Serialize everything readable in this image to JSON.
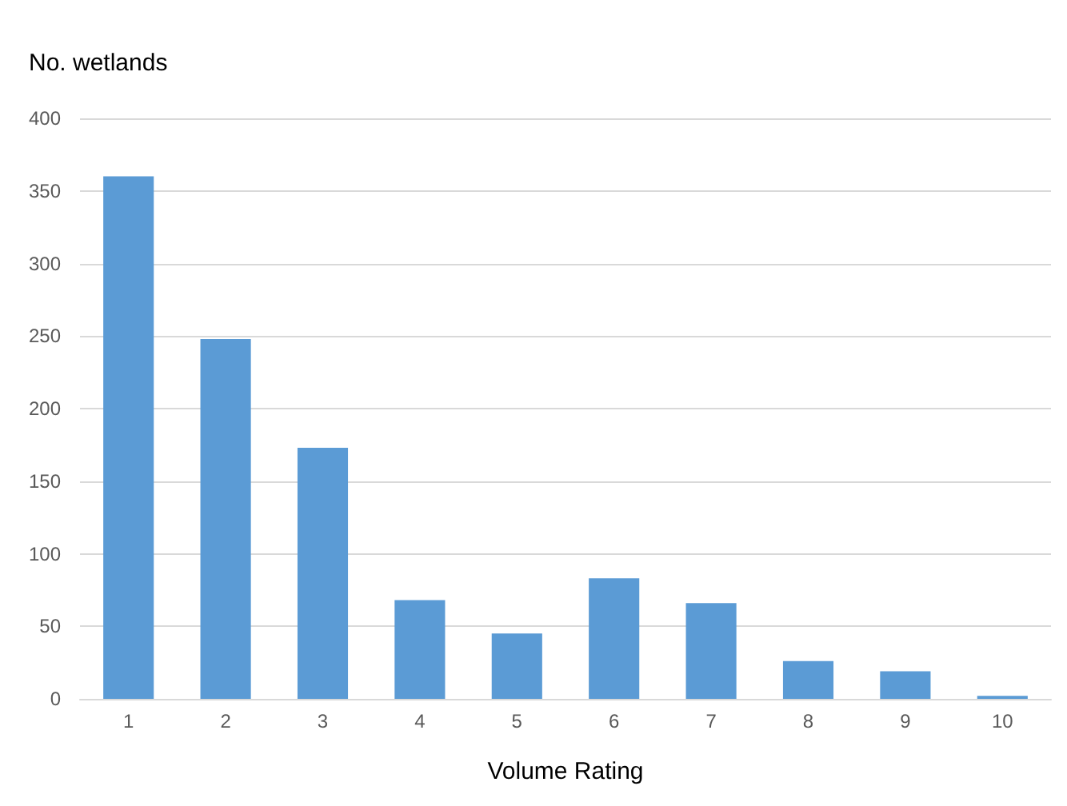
{
  "chart_data": {
    "type": "bar",
    "ylabel": "No. wetlands",
    "xlabel": "Volume Rating",
    "categories": [
      "1",
      "2",
      "3",
      "4",
      "5",
      "6",
      "7",
      "8",
      "9",
      "10"
    ],
    "values": [
      360,
      248,
      173,
      68,
      45,
      83,
      66,
      26,
      19,
      2
    ],
    "color": "#5b9bd5",
    "ylim": [
      0,
      400
    ],
    "yticks": [
      0,
      50,
      100,
      150,
      200,
      250,
      300,
      350,
      400
    ],
    "grid": "y"
  }
}
